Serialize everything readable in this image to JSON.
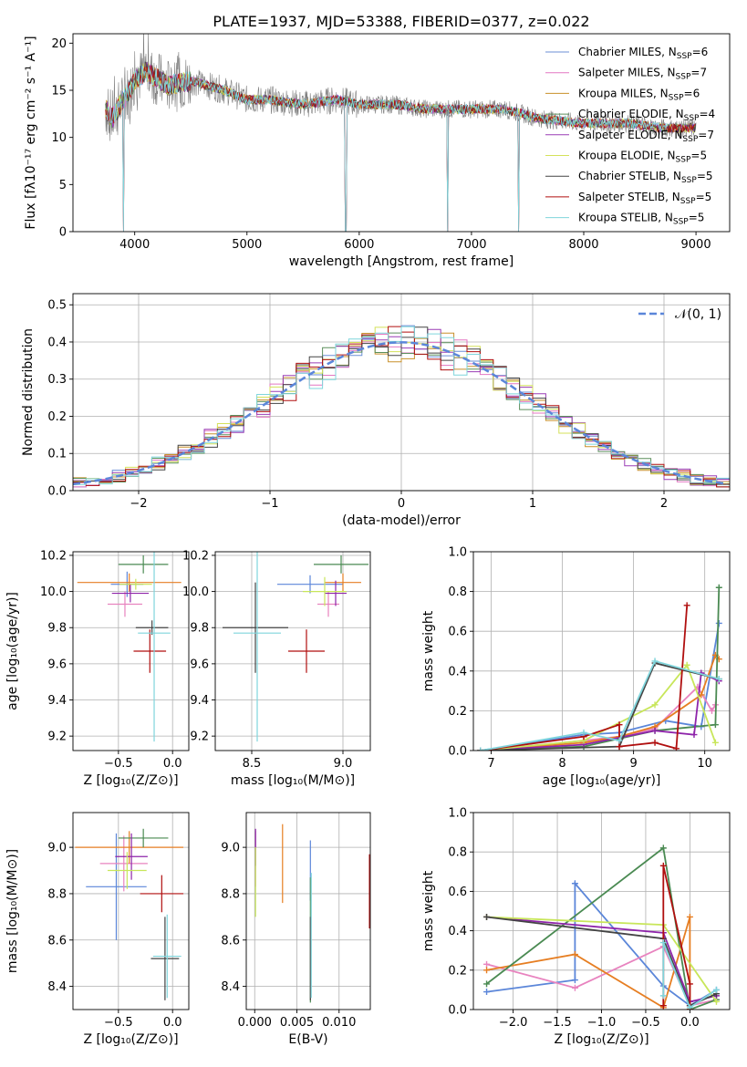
{
  "colors": [
    "#6b8fd6",
    "#e377c2",
    "#c8902a",
    "#5c8f5c",
    "#9a3db5",
    "#d4e15a",
    "#444444",
    "#b00f0f",
    "#7fd5dc"
  ],
  "colors_bright": [
    "#5b86d9",
    "#e883bf",
    "#e67e22",
    "#4a8a52",
    "#8e24aa",
    "#c8e65a",
    "#444444",
    "#b00f0f",
    "#7fd5dc"
  ],
  "chart_data": [
    {
      "id": "spectrum",
      "type": "line",
      "title": "PLATE=1937, MJD=53388, FIBERID=0377, z=0.022",
      "xlabel": "wavelength [Angstrom, rest frame]",
      "ylabel": "Flux [fλ10⁻¹⁷ erg cm⁻² s⁻¹ A⁻¹]",
      "xlim": [
        3450,
        9300
      ],
      "ylim": [
        0,
        21
      ],
      "xticks": [
        "4000",
        "5000",
        "6000",
        "7000",
        "8000",
        "9000"
      ],
      "yticks": [
        "0",
        "5",
        "10",
        "15",
        "20"
      ],
      "legend": "top-right",
      "series": [
        {
          "name": "Chabrier MILES, N_SSP=6"
        },
        {
          "name": "Salpeter MILES, N_SSP=7"
        },
        {
          "name": "Kroupa MILES, N_SSP=6"
        },
        {
          "name": "Chabrier ELODIE, N_SSP=4"
        },
        {
          "name": "Salpeter ELODIE, N_SSP=7"
        },
        {
          "name": "Kroupa ELODIE, N_SSP=5"
        },
        {
          "name": "Chabrier STELIB, N_SSP=5"
        },
        {
          "name": "Salpeter STELIB, N_SSP=5"
        },
        {
          "name": "Kroupa STELIB, N_SSP=5"
        }
      ],
      "continuum": [
        [
          3740,
          13
        ],
        [
          3800,
          12
        ],
        [
          3900,
          14
        ],
        [
          4000,
          16
        ],
        [
          4100,
          17
        ],
        [
          4300,
          15.5
        ],
        [
          4500,
          16
        ],
        [
          4800,
          15
        ],
        [
          5000,
          14
        ],
        [
          5200,
          14
        ],
        [
          5500,
          13.5
        ],
        [
          5800,
          14
        ],
        [
          6000,
          13.5
        ],
        [
          6300,
          13.5
        ],
        [
          6600,
          13
        ],
        [
          7000,
          13
        ],
        [
          7300,
          13
        ],
        [
          7600,
          12
        ],
        [
          8000,
          11.5
        ],
        [
          8400,
          11.5
        ],
        [
          8700,
          11
        ],
        [
          9000,
          11
        ]
      ],
      "features": [
        [
          3900,
          0
        ],
        [
          5880,
          0
        ],
        [
          6790,
          0
        ],
        [
          7420,
          0
        ]
      ]
    },
    {
      "id": "residuals",
      "type": "histogram",
      "xlabel": "(data-model)/error",
      "ylabel": "Normed distribution",
      "xlim": [
        -2.5,
        2.5
      ],
      "ylim": [
        0,
        0.53
      ],
      "xticks": [
        "−2",
        "−1",
        "0",
        "1",
        "2"
      ],
      "yticks": [
        "0.0",
        "0.1",
        "0.2",
        "0.3",
        "0.4",
        "0.5"
      ],
      "legend": "top-right",
      "reference_name": "𝒩(0, 1)",
      "bin_width": 0.1
    },
    {
      "id": "age-vs-Z",
      "type": "scatter",
      "xlabel": "Z [log₁₀(Z/Z⊙)]",
      "ylabel": "age  [log₁₀(age/yr)]",
      "xlim": [
        -0.92,
        0.15
      ],
      "ylim": [
        9.12,
        10.22
      ],
      "xticks": [
        "−0.5",
        "0.0"
      ],
      "yticks": [
        "9.2",
        "9.4",
        "9.6",
        "9.8",
        "10.0",
        "10.2"
      ],
      "points": [
        {
          "x": -0.42,
          "y": 10.04,
          "xerr": 0.15,
          "yerr": 0.07
        },
        {
          "x": -0.44,
          "y": 9.93,
          "xerr": 0.16,
          "yerr": 0.07
        },
        {
          "x": -0.4,
          "y": 10.05,
          "xerr": 0.48,
          "yerr": 0.05
        },
        {
          "x": -0.27,
          "y": 10.15,
          "xerr": 0.23,
          "yerr": 0.05
        },
        {
          "x": -0.39,
          "y": 9.99,
          "xerr": 0.17,
          "yerr": 0.05
        },
        {
          "x": -0.34,
          "y": 10.04,
          "xerr": 0.15,
          "yerr": 0.03
        },
        {
          "x": -0.19,
          "y": 9.8,
          "xerr": 0.15,
          "yerr": 0.04
        },
        {
          "x": -0.21,
          "y": 9.67,
          "xerr": 0.15,
          "yerr": 0.12
        },
        {
          "x": -0.17,
          "y": 9.77,
          "xerr": 0.15,
          "yerr": 0.6
        }
      ]
    },
    {
      "id": "age-vs-mass",
      "type": "scatter",
      "xlabel": "mass [log₁₀(M/M⊙)]",
      "ylabel": "",
      "xlim": [
        8.3,
        9.15
      ],
      "ylim": [
        9.12,
        10.22
      ],
      "xticks": [
        "8.5",
        "9.0"
      ],
      "yticks": [
        "9.2",
        "9.4",
        "9.6",
        "9.8",
        "10.0",
        "10.2"
      ],
      "points": [
        {
          "x": 8.82,
          "y": 10.04,
          "xerr": 0.18,
          "yerr": 0.05
        },
        {
          "x": 8.92,
          "y": 9.93,
          "xerr": 0.06,
          "yerr": 0.07
        },
        {
          "x": 9.0,
          "y": 10.05,
          "xerr": 0.1,
          "yerr": 0.05
        },
        {
          "x": 8.99,
          "y": 10.15,
          "xerr": 0.15,
          "yerr": 0.05
        },
        {
          "x": 8.96,
          "y": 9.99,
          "xerr": 0.06,
          "yerr": 0.07
        },
        {
          "x": 8.9,
          "y": 10.0,
          "xerr": 0.12,
          "yerr": 0.08
        },
        {
          "x": 8.52,
          "y": 9.8,
          "xerr": 0.18,
          "yerr": 0.25
        },
        {
          "x": 8.8,
          "y": 9.67,
          "xerr": 0.1,
          "yerr": 0.12
        },
        {
          "x": 8.53,
          "y": 9.77,
          "xerr": 0.13,
          "yerr": 0.6
        }
      ]
    },
    {
      "id": "weight-vs-age",
      "type": "line",
      "xlabel": "age  [log₁₀(age/yr)]",
      "ylabel": "mass weight",
      "xlim": [
        6.75,
        10.35
      ],
      "ylim": [
        0,
        1.0
      ],
      "xticks": [
        "7",
        "8",
        "9",
        "10"
      ],
      "yticks": [
        "0.0",
        "0.2",
        "0.4",
        "0.6",
        "0.8",
        "1.0"
      ],
      "series": [
        {
          "x": [
            6.85,
            8.3,
            8.8,
            9.45,
            9.95,
            10.2
          ],
          "y": [
            0.0,
            0.08,
            0.09,
            0.15,
            0.12,
            0.64
          ]
        },
        {
          "x": [
            6.85,
            8.3,
            8.8,
            9.3,
            9.9,
            10.1,
            10.15
          ],
          "y": [
            0.0,
            0.05,
            0.07,
            0.11,
            0.32,
            0.2,
            0.23
          ]
        },
        {
          "x": [
            6.85,
            8.3,
            8.8,
            9.3,
            9.95,
            10.15,
            10.2
          ],
          "y": [
            0.0,
            0.04,
            0.07,
            0.12,
            0.28,
            0.48,
            0.46
          ]
        },
        {
          "x": [
            6.85,
            8.3,
            9.3,
            10.15,
            10.2
          ],
          "y": [
            0.0,
            0.02,
            0.1,
            0.13,
            0.82
          ]
        },
        {
          "x": [
            6.85,
            8.3,
            9.3,
            9.85,
            9.95,
            10.2
          ],
          "y": [
            0.0,
            0.03,
            0.1,
            0.08,
            0.39,
            0.35
          ]
        },
        {
          "x": [
            6.85,
            8.3,
            9.3,
            9.75,
            10.15
          ],
          "y": [
            0.0,
            0.05,
            0.23,
            0.43,
            0.04
          ]
        },
        {
          "x": [
            6.85,
            8.8,
            9.3,
            10.2
          ],
          "y": [
            0.0,
            0.02,
            0.44,
            0.36
          ]
        },
        {
          "x": [
            6.85,
            8.3,
            8.8,
            8.8,
            9.3,
            9.6,
            9.75
          ],
          "y": [
            0.0,
            0.07,
            0.13,
            0.02,
            0.04,
            0.01,
            0.73
          ]
        },
        {
          "x": [
            6.85,
            8.3,
            8.8,
            9.3,
            10.2
          ],
          "y": [
            0.0,
            0.09,
            0.05,
            0.45,
            0.36
          ]
        }
      ]
    },
    {
      "id": "mass-vs-Z",
      "type": "scatter",
      "xlabel": "Z [log₁₀(Z/Z⊙)]",
      "ylabel": "mass [log₁₀(M/M⊙)]",
      "xlim": [
        -0.92,
        0.15
      ],
      "ylim": [
        8.3,
        9.15
      ],
      "xticks": [
        "−0.5",
        "0.0"
      ],
      "yticks": [
        "8.4",
        "8.6",
        "8.8",
        "9.0"
      ],
      "points": [
        {
          "x": -0.52,
          "y": 8.83,
          "xerr": 0.28,
          "yerr": 0.23
        },
        {
          "x": -0.45,
          "y": 8.93,
          "xerr": 0.22,
          "yerr": 0.12
        },
        {
          "x": -0.4,
          "y": 9.0,
          "xerr": 0.5,
          "yerr": 0.07
        },
        {
          "x": -0.27,
          "y": 9.04,
          "xerr": 0.23,
          "yerr": 0.04
        },
        {
          "x": -0.38,
          "y": 8.96,
          "xerr": 0.15,
          "yerr": 0.1
        },
        {
          "x": -0.42,
          "y": 8.9,
          "xerr": 0.18,
          "yerr": 0.08
        },
        {
          "x": -0.07,
          "y": 8.52,
          "xerr": 0.13,
          "yerr": 0.18
        },
        {
          "x": -0.1,
          "y": 8.8,
          "xerr": 0.2,
          "yerr": 0.08
        },
        {
          "x": -0.05,
          "y": 8.53,
          "xerr": 0.13,
          "yerr": 0.18
        }
      ]
    },
    {
      "id": "mass-vs-ebv",
      "type": "scatter",
      "xlabel": "E(B-V)",
      "ylabel": "",
      "xlim": [
        -0.001,
        0.0137
      ],
      "ylim": [
        8.3,
        9.15
      ],
      "xticks": [
        "0.000",
        "0.005",
        "0.010"
      ],
      "yticks": [
        "8.4",
        "8.6",
        "8.8",
        "9.0"
      ],
      "points": [
        {
          "x": 0.0066,
          "y": 8.9,
          "xerr": 0.0,
          "yerr": 0.13
        },
        {
          "x": 0.0001,
          "y": 8.95,
          "xerr": 0.0,
          "yerr": 0.12
        },
        {
          "x": 0.0033,
          "y": 8.93,
          "xerr": 0.0,
          "yerr": 0.17
        },
        {
          "x": 0.0066,
          "y": 8.6,
          "xerr": 0.0,
          "yerr": 0.27
        },
        {
          "x": 0.0001,
          "y": 9.0,
          "xerr": 0.0,
          "yerr": 0.08
        },
        {
          "x": 0.0001,
          "y": 8.85,
          "xerr": 0.0,
          "yerr": 0.15
        },
        {
          "x": 0.0066,
          "y": 8.52,
          "xerr": 0.0,
          "yerr": 0.18
        },
        {
          "x": 0.0136,
          "y": 8.81,
          "xerr": 0.0,
          "yerr": 0.16
        },
        {
          "x": 0.0067,
          "y": 8.62,
          "xerr": 0.0,
          "yerr": 0.27
        }
      ]
    },
    {
      "id": "weight-vs-Z",
      "type": "line",
      "xlabel": "Z [log₁₀(Z/Z⊙)]",
      "ylabel": "mass weight",
      "xlim": [
        -2.45,
        0.45
      ],
      "ylim": [
        0,
        1.0
      ],
      "xticks": [
        "−2.0",
        "−1.5",
        "−1.0",
        "−0.5",
        "0.0"
      ],
      "yticks": [
        "0.0",
        "0.2",
        "0.4",
        "0.6",
        "0.8",
        "1.0"
      ],
      "series": [
        {
          "x": [
            -2.3,
            -1.3,
            -1.3,
            -0.3,
            0.0,
            0.3
          ],
          "y": [
            0.09,
            0.15,
            0.64,
            0.12,
            0.02,
            0.1
          ]
        },
        {
          "x": [
            -2.3,
            -1.3,
            -0.3,
            0.0,
            0.3
          ],
          "y": [
            0.23,
            0.11,
            0.32,
            0.02,
            0.05
          ]
        },
        {
          "x": [
            -2.3,
            -1.3,
            -0.3,
            0.0,
            0.0
          ],
          "y": [
            0.2,
            0.28,
            0.01,
            0.47,
            0.0
          ]
        },
        {
          "x": [
            -2.3,
            -0.3,
            0.0,
            0.3
          ],
          "y": [
            0.13,
            0.82,
            0.0,
            0.05
          ]
        },
        {
          "x": [
            -2.3,
            -0.3,
            0.0,
            0.3
          ],
          "y": [
            0.47,
            0.39,
            0.04,
            0.07
          ]
        },
        {
          "x": [
            -2.3,
            -0.3,
            0.3
          ],
          "y": [
            0.47,
            0.43,
            0.04
          ]
        },
        {
          "x": [
            -2.3,
            -0.3,
            0.0,
            0.3
          ],
          "y": [
            0.47,
            0.36,
            0.02,
            0.08
          ]
        },
        {
          "x": [
            -0.3,
            -0.3,
            0.0,
            0.0
          ],
          "y": [
            0.02,
            0.73,
            0.13,
            0.0
          ]
        },
        {
          "x": [
            -0.3,
            -0.3,
            0.0,
            0.3
          ],
          "y": [
            0.07,
            0.34,
            0.01,
            0.1
          ]
        }
      ]
    }
  ]
}
